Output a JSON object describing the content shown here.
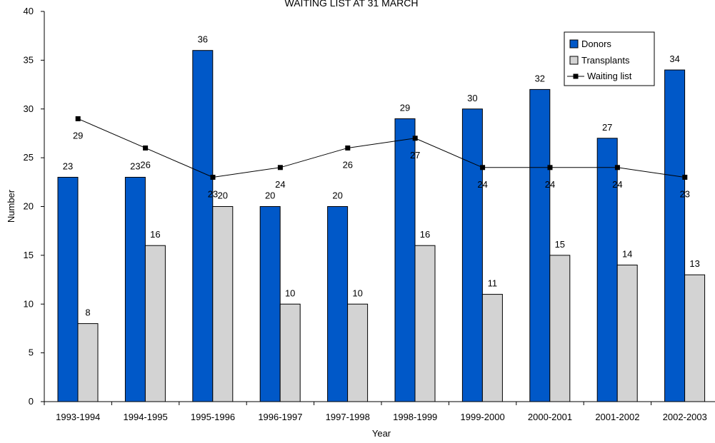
{
  "chart_data": {
    "type": "bar",
    "title": "WAITING LIST AT 31 MARCH",
    "xlabel": "Year",
    "ylabel": "Number",
    "ylim": [
      0,
      40
    ],
    "yticks": [
      0,
      5,
      10,
      15,
      20,
      25,
      30,
      35,
      40
    ],
    "grid": false,
    "legend_position": "top-right",
    "categories": [
      "1993-1994",
      "1994-1995",
      "1995-1996",
      "1996-1997",
      "1997-1998",
      "1998-1999",
      "1999-2000",
      "2000-2001",
      "2001-2002",
      "2002-2003"
    ],
    "series": [
      {
        "name": "Donors",
        "type": "bar",
        "color": "#0058C8",
        "values": [
          23,
          23,
          36,
          20,
          20,
          29,
          30,
          32,
          27,
          34
        ]
      },
      {
        "name": "Transplants",
        "type": "bar",
        "color": "#D3D3D3",
        "values": [
          8,
          16,
          20,
          10,
          10,
          16,
          11,
          15,
          14,
          13
        ]
      },
      {
        "name": "Waiting list",
        "type": "line",
        "color": "#000000",
        "values": [
          29,
          26,
          23,
          24,
          26,
          27,
          24,
          24,
          24,
          23
        ]
      }
    ]
  }
}
